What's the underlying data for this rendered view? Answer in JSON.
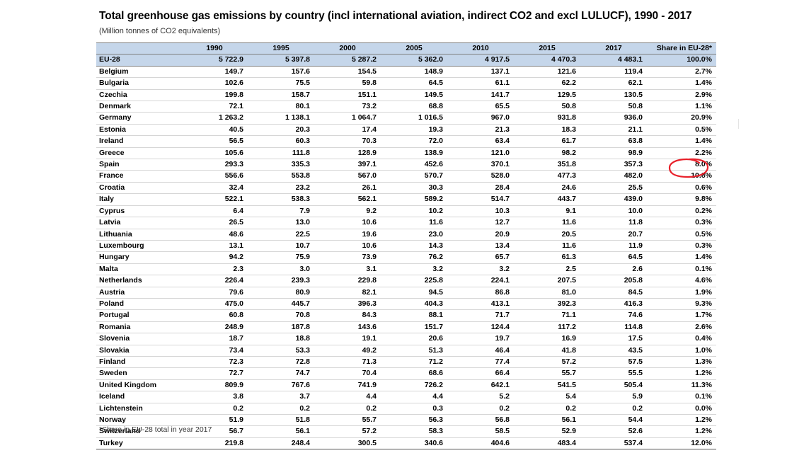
{
  "title": "Total greenhouse gas emissions by country (incl international aviation, indirect CO2 and excl LULUCF), 1990 - 2017",
  "subtitle": "(Million tonnes of CO2 equivalents)",
  "footnote": "*Share in EU-28 total in year 2017",
  "annotation": {
    "type": "hand-drawn circle",
    "color": "#e8202a",
    "target": "France share 10.8%"
  },
  "colors": {
    "header_bg": "#c5d6ea",
    "annotation": "#e8202a"
  },
  "table": {
    "headers": [
      "",
      "1990",
      "1995",
      "2000",
      "2005",
      "2010",
      "2015",
      "2017",
      "Share in EU-28*"
    ],
    "total_row": [
      "EU-28",
      "5 722.9",
      "5 397.8",
      "5 287.2",
      "5 362.0",
      "4 917.5",
      "4 470.3",
      "4 483.1",
      "100.0%"
    ],
    "rows": [
      [
        "Belgium",
        "149.7",
        "157.6",
        "154.5",
        "148.9",
        "137.1",
        "121.6",
        "119.4",
        "2.7%"
      ],
      [
        "Bulgaria",
        "102.6",
        "75.5",
        "59.8",
        "64.5",
        "61.1",
        "62.2",
        "62.1",
        "1.4%"
      ],
      [
        "Czechia",
        "199.8",
        "158.7",
        "151.1",
        "149.5",
        "141.7",
        "129.5",
        "130.5",
        "2.9%"
      ],
      [
        "Denmark",
        "72.1",
        "80.1",
        "73.2",
        "68.8",
        "65.5",
        "50.8",
        "50.8",
        "1.1%"
      ],
      [
        "Germany",
        "1 263.2",
        "1 138.1",
        "1 064.7",
        "1 016.5",
        "967.0",
        "931.8",
        "936.0",
        "20.9%"
      ],
      [
        "Estonia",
        "40.5",
        "20.3",
        "17.4",
        "19.3",
        "21.3",
        "18.3",
        "21.1",
        "0.5%"
      ],
      [
        "Ireland",
        "56.5",
        "60.3",
        "70.3",
        "72.0",
        "63.4",
        "61.7",
        "63.8",
        "1.4%"
      ],
      [
        "Greece",
        "105.6",
        "111.8",
        "128.9",
        "138.9",
        "121.0",
        "98.2",
        "98.9",
        "2.2%"
      ],
      [
        "Spain",
        "293.3",
        "335.3",
        "397.1",
        "452.6",
        "370.1",
        "351.8",
        "357.3",
        "8.0%"
      ],
      [
        "France",
        "556.6",
        "553.8",
        "567.0",
        "570.7",
        "528.0",
        "477.3",
        "482.0",
        "10.8%"
      ],
      [
        "Croatia",
        "32.4",
        "23.2",
        "26.1",
        "30.3",
        "28.4",
        "24.6",
        "25.5",
        "0.6%"
      ],
      [
        "Italy",
        "522.1",
        "538.3",
        "562.1",
        "589.2",
        "514.7",
        "443.7",
        "439.0",
        "9.8%"
      ],
      [
        "Cyprus",
        "6.4",
        "7.9",
        "9.2",
        "10.2",
        "10.3",
        "9.1",
        "10.0",
        "0.2%"
      ],
      [
        "Latvia",
        "26.5",
        "13.0",
        "10.6",
        "11.6",
        "12.7",
        "11.6",
        "11.8",
        "0.3%"
      ],
      [
        "Lithuania",
        "48.6",
        "22.5",
        "19.6",
        "23.0",
        "20.9",
        "20.5",
        "20.7",
        "0.5%"
      ],
      [
        "Luxembourg",
        "13.1",
        "10.7",
        "10.6",
        "14.3",
        "13.4",
        "11.6",
        "11.9",
        "0.3%"
      ],
      [
        "Hungary",
        "94.2",
        "75.9",
        "73.9",
        "76.2",
        "65.7",
        "61.3",
        "64.5",
        "1.4%"
      ],
      [
        "Malta",
        "2.3",
        "3.0",
        "3.1",
        "3.2",
        "3.2",
        "2.5",
        "2.6",
        "0.1%"
      ],
      [
        "Netherlands",
        "226.4",
        "239.3",
        "229.8",
        "225.8",
        "224.1",
        "207.5",
        "205.8",
        "4.6%"
      ],
      [
        "Austria",
        "79.6",
        "80.9",
        "82.1",
        "94.5",
        "86.8",
        "81.0",
        "84.5",
        "1.9%"
      ],
      [
        "Poland",
        "475.0",
        "445.7",
        "396.3",
        "404.3",
        "413.1",
        "392.3",
        "416.3",
        "9.3%"
      ],
      [
        "Portugal",
        "60.8",
        "70.8",
        "84.3",
        "88.1",
        "71.7",
        "71.1",
        "74.6",
        "1.7%"
      ],
      [
        "Romania",
        "248.9",
        "187.8",
        "143.6",
        "151.7",
        "124.4",
        "117.2",
        "114.8",
        "2.6%"
      ],
      [
        "Slovenia",
        "18.7",
        "18.8",
        "19.1",
        "20.6",
        "19.7",
        "16.9",
        "17.5",
        "0.4%"
      ],
      [
        "Slovakia",
        "73.4",
        "53.3",
        "49.2",
        "51.3",
        "46.4",
        "41.8",
        "43.5",
        "1.0%"
      ],
      [
        "Finland",
        "72.3",
        "72.8",
        "71.3",
        "71.2",
        "77.4",
        "57.2",
        "57.5",
        "1.3%"
      ],
      [
        "Sweden",
        "72.7",
        "74.7",
        "70.4",
        "68.6",
        "66.4",
        "55.7",
        "55.5",
        "1.2%"
      ],
      [
        "United Kingdom",
        "809.9",
        "767.6",
        "741.9",
        "726.2",
        "642.1",
        "541.5",
        "505.4",
        "11.3%"
      ]
    ],
    "other_rows": [
      [
        "Iceland",
        "3.8",
        "3.7",
        "4.4",
        "4.4",
        "5.2",
        "5.4",
        "5.9",
        "0.1%"
      ],
      [
        "Lichtenstein",
        "0.2",
        "0.2",
        "0.2",
        "0.3",
        "0.2",
        "0.2",
        "0.2",
        "0.0%"
      ],
      [
        "Norway",
        "51.9",
        "51.8",
        "55.7",
        "56.3",
        "56.8",
        "56.1",
        "54.4",
        "1.2%"
      ],
      [
        "Switzerland",
        "56.7",
        "56.1",
        "57.2",
        "58.3",
        "58.5",
        "52.9",
        "52.6",
        "1.2%"
      ],
      [
        "Turkey",
        "219.8",
        "248.4",
        "300.5",
        "340.6",
        "404.6",
        "483.4",
        "537.4",
        "12.0%"
      ]
    ]
  }
}
